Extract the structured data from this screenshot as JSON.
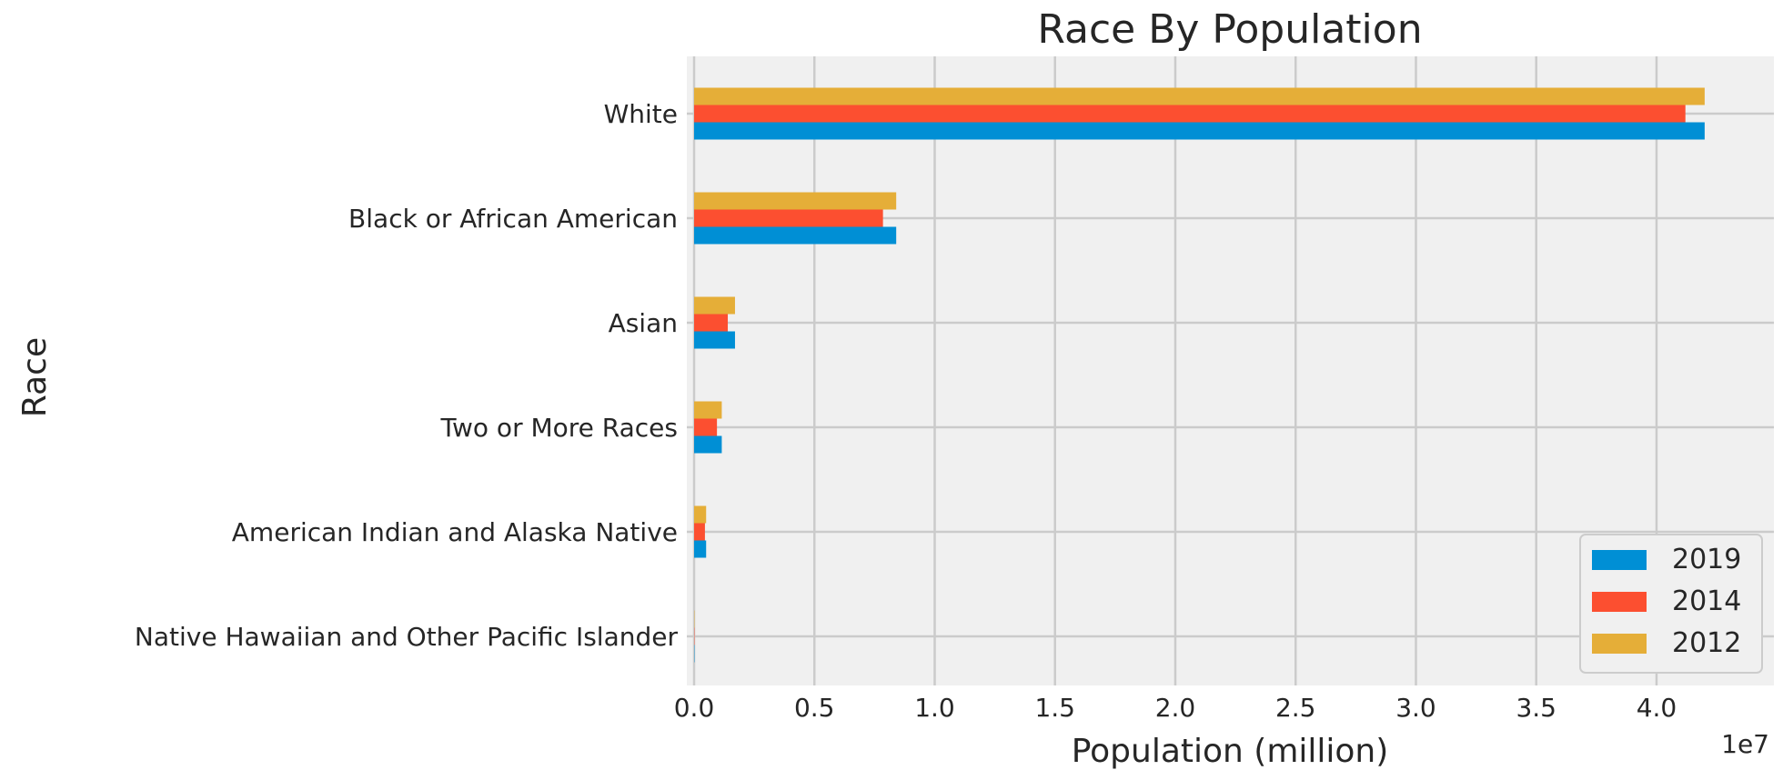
{
  "chart_data": {
    "type": "bar",
    "orientation": "horizontal",
    "title": "Race By Population",
    "xlabel": "Population (million)",
    "ylabel": "Race",
    "x_offset_label": "1e7",
    "xlim": [
      0,
      44500000
    ],
    "x_ticks": [
      0,
      5000000,
      10000000,
      15000000,
      20000000,
      25000000,
      30000000,
      35000000,
      40000000
    ],
    "x_tick_labels": [
      "0.0",
      "0.5",
      "1.0",
      "1.5",
      "2.0",
      "2.5",
      "3.0",
      "3.5",
      "4.0"
    ],
    "grid": true,
    "legend_position": "bottom-right",
    "categories": [
      "White",
      "Black or African American",
      "Asian",
      "Two or More Races",
      "American Indian and Alaska Native",
      "Native Hawaiian and Other Pacific Islander"
    ],
    "series": [
      {
        "name": "2019",
        "color": "#008fd5",
        "values": [
          42000000,
          8400000,
          1700000,
          1150000,
          500000,
          15000
        ]
      },
      {
        "name": "2014",
        "color": "#fc4f30",
        "values": [
          41200000,
          7850000,
          1400000,
          950000,
          450000,
          15000
        ]
      },
      {
        "name": "2012",
        "color": "#e5ae38",
        "values": [
          42000000,
          8400000,
          1700000,
          1150000,
          500000,
          15000
        ]
      }
    ],
    "background_color": "#f0f0f0",
    "grid_color": "#cbcbcb"
  }
}
